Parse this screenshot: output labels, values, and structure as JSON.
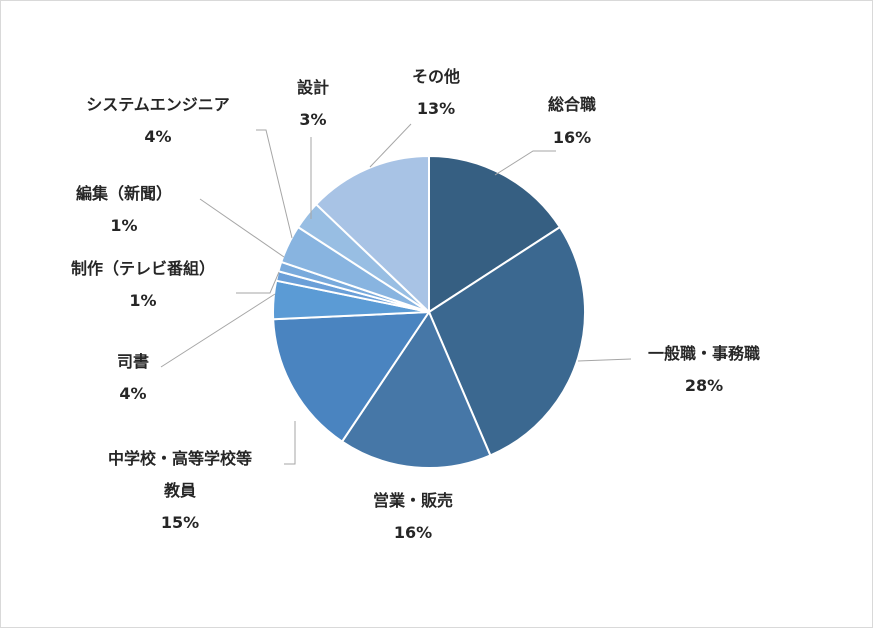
{
  "chart_data": {
    "type": "pie",
    "title": "",
    "slices": [
      {
        "label": [
          "総合職"
        ],
        "value": 16,
        "value_label": "16%",
        "color": "#365f82"
      },
      {
        "label": [
          "一般職・事務職"
        ],
        "value": 28,
        "value_label": "28%",
        "color": "#3b6890"
      },
      {
        "label": [
          "営業・販売"
        ],
        "value": 16,
        "value_label": "16%",
        "color": "#4677a7"
      },
      {
        "label": [
          "中学校・高等学校等",
          "教員"
        ],
        "value": 15,
        "value_label": "15%",
        "color": "#4a84c0"
      },
      {
        "label": [
          "司書"
        ],
        "value": 4,
        "value_label": "4%",
        "color": "#5b9bd5"
      },
      {
        "label": [
          "制作（テレビ番組）"
        ],
        "value": 1,
        "value_label": "1%",
        "color": "#6a9fd8"
      },
      {
        "label": [
          "編集（新聞）"
        ],
        "value": 1,
        "value_label": "1%",
        "color": "#79aadc"
      },
      {
        "label": [
          "システムエンジニア"
        ],
        "value": 4,
        "value_label": "4%",
        "color": "#88b4e0"
      },
      {
        "label": [
          "設計"
        ],
        "value": 3,
        "value_label": "3%",
        "color": "#98bee3"
      },
      {
        "label": [
          "その他"
        ],
        "value": 13,
        "value_label": "13%",
        "color": "#a8c3e5"
      }
    ],
    "legend": "none",
    "start": "top",
    "direction": "clockwise"
  }
}
